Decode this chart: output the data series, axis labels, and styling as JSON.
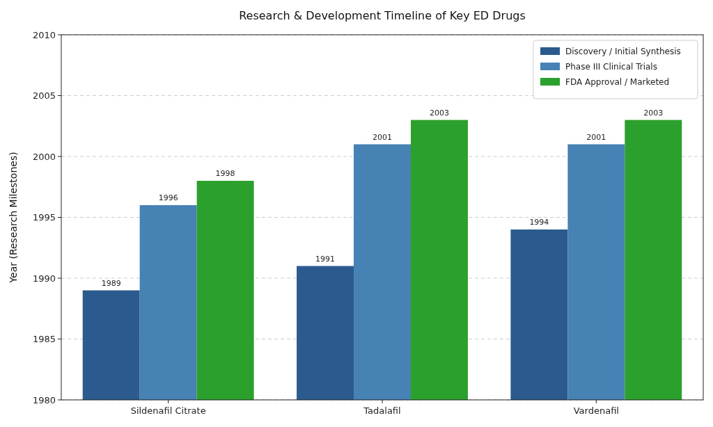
{
  "chart_data": {
    "type": "bar",
    "title": "Research & Development Timeline of Key ED Drugs",
    "ylabel": "Year (Research Milestones)",
    "categories": [
      "Sildenafil Citrate",
      "Tadalafil",
      "Vardenafil"
    ],
    "series": [
      {
        "name": "Discovery / Initial Synthesis",
        "color": "#2b5b8e",
        "values": [
          1989,
          1991,
          1994
        ]
      },
      {
        "name": "Phase III Clinical Trials",
        "color": "#4682b4",
        "values": [
          1996,
          2001,
          2001
        ]
      },
      {
        "name": "FDA Approval / Marketed",
        "color": "#2ca02c",
        "values": [
          1998,
          2003,
          2003
        ]
      }
    ],
    "ylim": [
      1980,
      2010
    ],
    "yticks": [
      1980,
      1985,
      1990,
      1995,
      2000,
      2005,
      2010
    ],
    "grid": "y",
    "legend": "top right",
    "data_labels": true
  }
}
